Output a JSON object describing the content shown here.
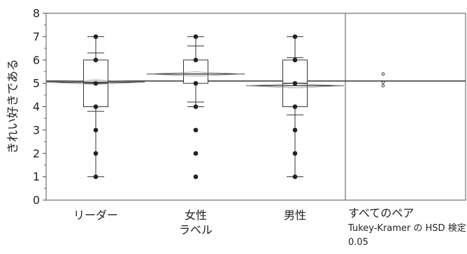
{
  "chart_data": {
    "type": "box",
    "ylabel": "きれい好きである",
    "ylim": [
      0,
      8
    ],
    "yticks": [
      0,
      1,
      2,
      3,
      4,
      5,
      6,
      7,
      8
    ],
    "grand_mean": 5.1,
    "categories": [
      {
        "label": "リーダー",
        "min": 1,
        "q1": 4,
        "median": 5,
        "q3": 6,
        "max": 7,
        "mean": 5.05,
        "sd_low": 3.8,
        "sd_high": 6.3,
        "points": [
          1,
          2,
          3,
          4,
          5,
          6,
          7
        ]
      },
      {
        "label": "女性",
        "min": 4,
        "q1": 5,
        "median": 5.4,
        "q3": 6,
        "max": 7,
        "mean": 5.4,
        "sd_low": 4.2,
        "sd_high": 6.6,
        "points": [
          1,
          2,
          3,
          4,
          5,
          6,
          7
        ]
      },
      {
        "label": "男性",
        "min": 1,
        "q1": 4,
        "median": 5,
        "q3": 6,
        "max": 7,
        "mean": 4.9,
        "sd_low": 3.65,
        "sd_high": 6.1,
        "points": [
          1,
          2,
          3,
          4,
          5,
          6,
          7
        ]
      }
    ],
    "x_title": "ラベル",
    "comparison": {
      "label_lines": [
        "すべてのペア",
        "Tukey-Kramer の HSD 検定",
        "0.05"
      ],
      "circles": [
        {
          "center": 5.4,
          "radius": 0.05
        },
        {
          "center": 5.05,
          "radius": 0.05
        },
        {
          "center": 4.9,
          "radius": 0.05
        }
      ]
    }
  }
}
